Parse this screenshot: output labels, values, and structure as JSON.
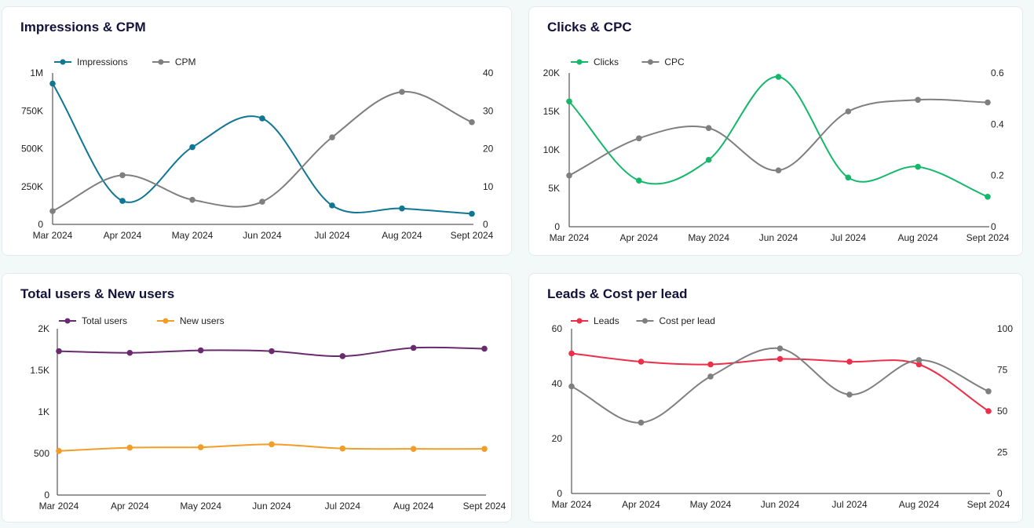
{
  "charts": [
    {
      "title": "Impressions & CPM",
      "chart_data": {
        "type": "line",
        "categories": [
          "Mar 2024",
          "Apr 2024",
          "May 2024",
          "Jun 2024",
          "Jul 2024",
          "Aug 2024",
          "Sept 2024"
        ],
        "series": [
          {
            "name": "Impressions",
            "axis": "left",
            "color": "#0f7694",
            "values": [
              930000,
              155000,
              510000,
              700000,
              125000,
              105000,
              70000
            ]
          },
          {
            "name": "CPM",
            "axis": "right",
            "color": "#7f7f7f",
            "values": [
              3.5,
              13,
              6.5,
              6,
              23,
              35,
              27
            ]
          }
        ],
        "y_left": {
          "ylim": [
            0,
            1000000
          ],
          "ticks": [
            0,
            250000,
            500000,
            750000,
            1000000
          ],
          "tick_labels": [
            "0",
            "250K",
            "500K",
            "750K",
            "1M"
          ]
        },
        "y_right": {
          "ylim": [
            0,
            40
          ],
          "ticks": [
            0,
            10,
            20,
            30,
            40
          ],
          "tick_labels": [
            "0",
            "10",
            "20",
            "30",
            "40"
          ]
        },
        "legend": "top-left"
      }
    },
    {
      "title": "Clicks & CPC",
      "chart_data": {
        "type": "line",
        "categories": [
          "Mar 2024",
          "Apr 2024",
          "May 2024",
          "Jun 2024",
          "Jul 2024",
          "Aug 2024",
          "Sept 2024"
        ],
        "series": [
          {
            "name": "Clicks",
            "axis": "left",
            "color": "#15b86a",
            "values": [
              16300,
              6000,
              8700,
              19500,
              6400,
              7800,
              3900
            ]
          },
          {
            "name": "CPC",
            "axis": "right",
            "color": "#7f7f7f",
            "values": [
              0.2,
              0.345,
              0.385,
              0.22,
              0.45,
              0.495,
              0.485
            ]
          }
        ],
        "y_left": {
          "ylim": [
            0,
            20000
          ],
          "ticks": [
            0,
            5000,
            10000,
            15000,
            20000
          ],
          "tick_labels": [
            "0",
            "5K",
            "10K",
            "15K",
            "20K"
          ]
        },
        "y_right": {
          "ylim": [
            0,
            0.6
          ],
          "ticks": [
            0,
            0.2,
            0.4,
            0.6
          ],
          "tick_labels": [
            "0",
            "0.2",
            "0.4",
            "0.6"
          ]
        },
        "legend": "top-left"
      }
    },
    {
      "title": "Total users & New users",
      "chart_data": {
        "type": "line",
        "categories": [
          "Mar 2024",
          "Apr 2024",
          "May 2024",
          "Jun 2024",
          "Jul 2024",
          "Aug 2024",
          "Sept 2024"
        ],
        "series": [
          {
            "name": "Total users",
            "axis": "left",
            "color": "#6a2a6e",
            "values": [
              1730,
              1710,
              1740,
              1730,
              1670,
              1770,
              1760
            ]
          },
          {
            "name": "New users",
            "axis": "left",
            "color": "#f29d27",
            "values": [
              530,
              570,
              575,
              610,
              560,
              555,
              555
            ]
          }
        ],
        "y_left": {
          "ylim": [
            0,
            2000
          ],
          "ticks": [
            0,
            500,
            1000,
            1500,
            2000
          ],
          "tick_labels": [
            "0",
            "500",
            "1K",
            "1.5K",
            "2K"
          ]
        },
        "legend": "top-left"
      }
    },
    {
      "title": "Leads & Cost per lead",
      "chart_data": {
        "type": "line",
        "categories": [
          "Mar 2024",
          "Apr 2024",
          "May 2024",
          "Jun 2024",
          "Jul 2024",
          "Aug 2024",
          "Sept 2024"
        ],
        "series": [
          {
            "name": "Leads",
            "axis": "left",
            "color": "#ee2e48",
            "values": [
              51,
              48,
              47,
              49,
              48,
              47,
              30
            ]
          },
          {
            "name": "Cost per lead",
            "axis": "right",
            "color": "#7f7f7f",
            "values": [
              65,
              43,
              71,
              88,
              60,
              81,
              62
            ]
          }
        ],
        "y_left": {
          "ylim": [
            0,
            60
          ],
          "ticks": [
            0,
            20,
            40,
            60
          ],
          "tick_labels": [
            "0",
            "20",
            "40",
            "60"
          ]
        },
        "y_right": {
          "ylim": [
            0,
            100
          ],
          "ticks": [
            0,
            25,
            50,
            75,
            100
          ],
          "tick_labels": [
            "0",
            "25",
            "50",
            "75",
            "100"
          ]
        },
        "legend": "top-left"
      }
    }
  ]
}
